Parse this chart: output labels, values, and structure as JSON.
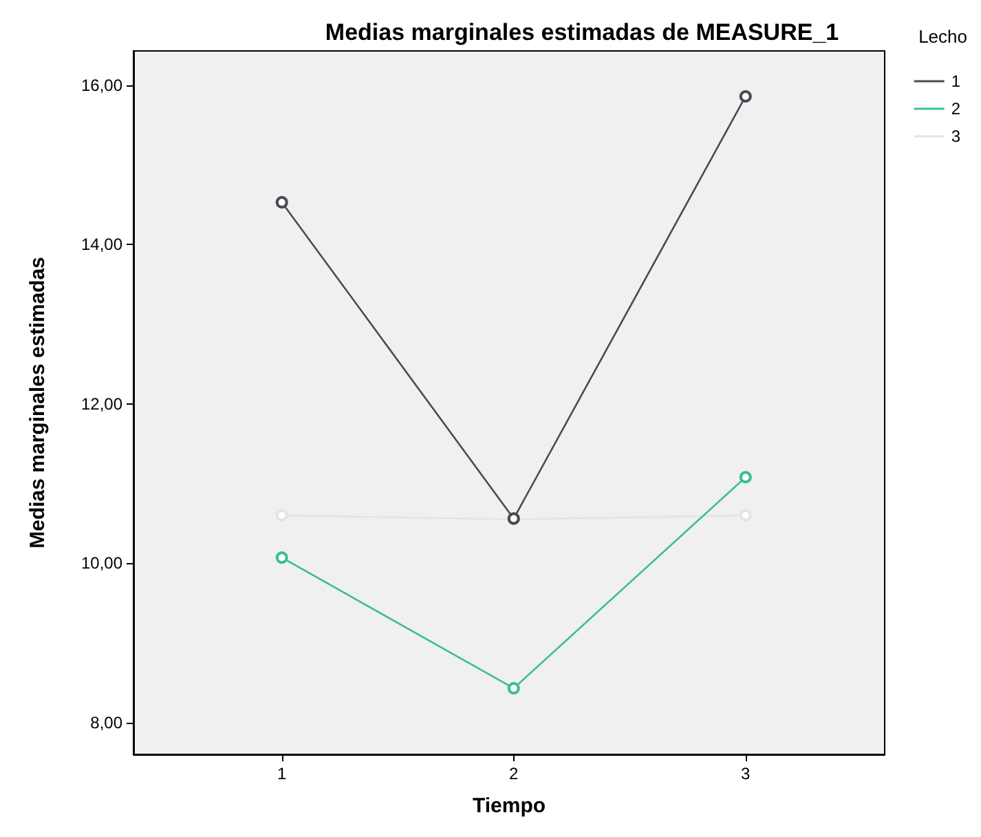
{
  "chart_data": {
    "type": "line",
    "title": "Medias marginales estimadas de MEASURE_1",
    "xlabel": "Tiempo",
    "ylabel": "Medias marginales estimadas",
    "legend_title": "Lecho",
    "x": [
      1,
      2,
      3
    ],
    "xlim": [
      0.36,
      3.6
    ],
    "xticks": [
      1,
      2,
      3
    ],
    "ylim": [
      7.6,
      16.43
    ],
    "yticks": [
      {
        "value": 8,
        "label": "8,00"
      },
      {
        "value": 10,
        "label": "10,00"
      },
      {
        "value": 12,
        "label": "12,00"
      },
      {
        "value": 14,
        "label": "14,00"
      },
      {
        "value": 16,
        "label": "16,00"
      }
    ],
    "series": [
      {
        "name": "1",
        "color": "#4a4a55",
        "values": [
          14.53,
          10.56,
          15.86
        ]
      },
      {
        "name": "2",
        "color": "#3cbf8a",
        "values": [
          10.07,
          8.43,
          11.08
        ]
      },
      {
        "name": "3",
        "color": "#e4e4e4",
        "values": [
          10.6,
          10.55,
          10.6
        ]
      }
    ],
    "marker": "circle",
    "line_style": "solid",
    "legend": "top right",
    "grid": false
  }
}
